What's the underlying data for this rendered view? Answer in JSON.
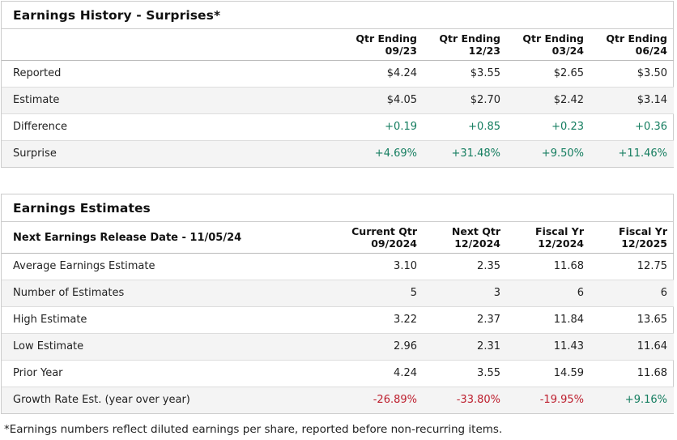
{
  "colors": {
    "positive_green": "#147d5f",
    "negative_red": "#bd1e2d",
    "panel_border": "#cccccc",
    "row_border": "#dddddd",
    "header_border": "#b9b9b9",
    "alt_row_bg": "#f4f4f4",
    "text": "#222222"
  },
  "earnings_history": {
    "title": "Earnings History - Surprises*",
    "columns": [
      {
        "line1": "Qtr Ending",
        "line2": "09/23"
      },
      {
        "line1": "Qtr Ending",
        "line2": "12/23"
      },
      {
        "line1": "Qtr Ending",
        "line2": "03/24"
      },
      {
        "line1": "Qtr Ending",
        "line2": "06/24"
      }
    ],
    "rows": [
      {
        "label": "Reported",
        "values": [
          "$4.24",
          "$3.55",
          "$2.65",
          "$3.50"
        ]
      },
      {
        "label": "Estimate",
        "values": [
          "$4.05",
          "$2.70",
          "$2.42",
          "$3.14"
        ]
      },
      {
        "label": "Difference",
        "values": [
          "+0.19",
          "+0.85",
          "+0.23",
          "+0.36"
        ],
        "tone": "positive"
      },
      {
        "label": "Surprise",
        "values": [
          "+4.69%",
          "+31.48%",
          "+9.50%",
          "+11.46%"
        ],
        "tone": "positive"
      }
    ]
  },
  "earnings_estimates": {
    "title": "Earnings Estimates",
    "release_date_label": "Next Earnings Release Date - 11/05/24",
    "columns": [
      {
        "line1": "Current Qtr",
        "line2": "09/2024"
      },
      {
        "line1": "Next Qtr",
        "line2": "12/2024"
      },
      {
        "line1": "Fiscal Yr",
        "line2": "12/2024"
      },
      {
        "line1": "Fiscal Yr",
        "line2": "12/2025"
      }
    ],
    "rows": [
      {
        "label": "Average Earnings Estimate",
        "values": [
          "3.10",
          "2.35",
          "11.68",
          "12.75"
        ]
      },
      {
        "label": "Number of Estimates",
        "values": [
          "5",
          "3",
          "6",
          "6"
        ]
      },
      {
        "label": "High Estimate",
        "values": [
          "3.22",
          "2.37",
          "11.84",
          "13.65"
        ]
      },
      {
        "label": "Low Estimate",
        "values": [
          "2.96",
          "2.31",
          "11.43",
          "11.64"
        ]
      },
      {
        "label": "Prior Year",
        "values": [
          "4.24",
          "3.55",
          "14.59",
          "11.68"
        ]
      },
      {
        "label": "Growth Rate Est. (year over year)",
        "values": [
          "-26.89%",
          "-33.80%",
          "-19.95%",
          "+9.16%"
        ],
        "tones": [
          "negative",
          "negative",
          "negative",
          "positive"
        ]
      }
    ]
  },
  "footnote": "*Earnings numbers reflect diluted earnings per share, reported before non-recurring items."
}
